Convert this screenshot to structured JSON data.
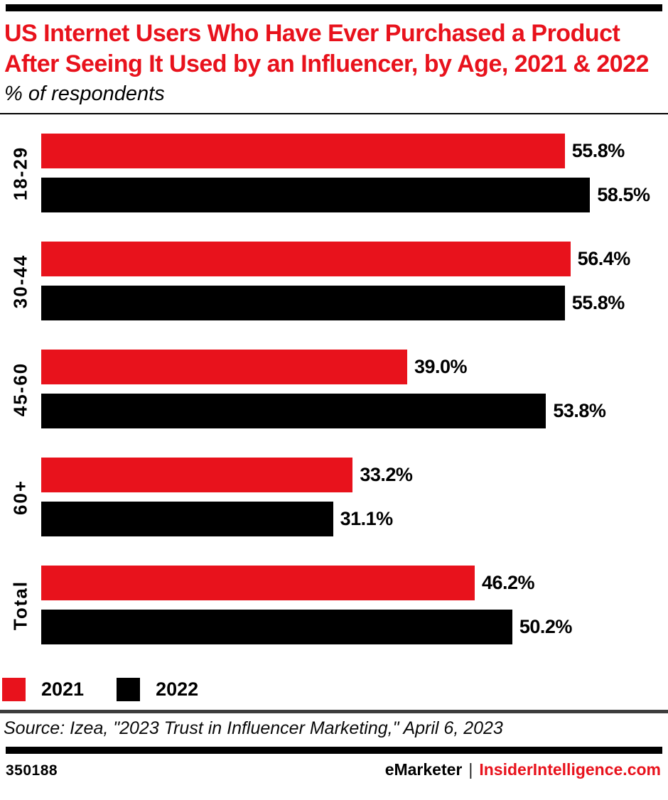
{
  "chart_data": {
    "type": "bar",
    "orientation": "horizontal",
    "title": "US Internet Users Who Have Ever Purchased a Product After Seeing It Used by an Influencer, by Age, 2021 & 2022",
    "subtitle": "% of respondents",
    "categories": [
      "18-29",
      "30-44",
      "45-60",
      "60+",
      "Total"
    ],
    "series": [
      {
        "name": "2021",
        "color": "#e8121c",
        "values": [
          55.8,
          56.4,
          39.0,
          33.2,
          46.2
        ]
      },
      {
        "name": "2022",
        "color": "#000000",
        "values": [
          58.5,
          55.8,
          53.8,
          31.1,
          50.2
        ]
      }
    ],
    "value_suffix": "%",
    "xlim": [
      0,
      66.8
    ],
    "grid": false,
    "legend_position": "bottom",
    "value_labels": "outside-end"
  },
  "source": "Source: Izea, \"2023 Trust in Influencer Marketing,\" April 6, 2023",
  "footer": {
    "chart_id": "350188",
    "brand_left": "eMarketer",
    "separator": "|",
    "brand_right": "InsiderIntelligence.com"
  },
  "colors": {
    "accent_red": "#e8121c",
    "bar_black": "#000000",
    "rule_gray": "#3d3d3d"
  }
}
